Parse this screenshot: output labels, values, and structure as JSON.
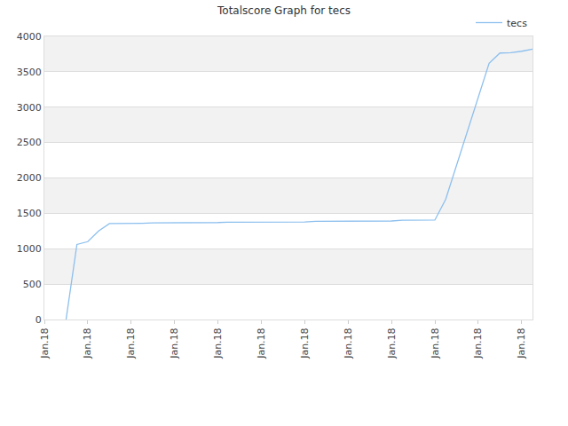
{
  "chart_data": {
    "type": "line",
    "title": "Totalscore Graph for tecs",
    "categories": [
      "Jan.18",
      null,
      null,
      null,
      "Jan.18",
      null,
      null,
      null,
      "Jan.18",
      null,
      null,
      null,
      "Jan.18",
      null,
      null,
      null,
      "Jan.18",
      null,
      null,
      null,
      "Jan.18",
      null,
      null,
      null,
      "Jan.18",
      null,
      null,
      null,
      "Jan.18",
      null,
      null,
      null,
      "Jan.18",
      null,
      null,
      null,
      "Jan.18",
      null,
      null,
      null,
      "Jan.18",
      null,
      null,
      null,
      "Jan.18",
      null
    ],
    "series": [
      {
        "name": "tecs",
        "color": "#8cbfee",
        "values": [
          null,
          null,
          0,
          1060,
          1100,
          1250,
          1355,
          1355,
          1355,
          1360,
          1365,
          1365,
          1365,
          1365,
          1365,
          1365,
          1370,
          1375,
          1375,
          1375,
          1375,
          1375,
          1378,
          1378,
          1378,
          1388,
          1388,
          1388,
          1388,
          1390,
          1390,
          1390,
          1392,
          1402,
          1402,
          1402,
          1405,
          1700,
          2180,
          2660,
          3140,
          3620,
          3765,
          3770,
          3790,
          3820
        ]
      }
    ],
    "ylim": [
      0,
      4000
    ],
    "yticks": [
      0,
      500,
      1000,
      1500,
      2000,
      2500,
      3000,
      3500,
      4000
    ],
    "grid": true,
    "legend": "top right"
  }
}
